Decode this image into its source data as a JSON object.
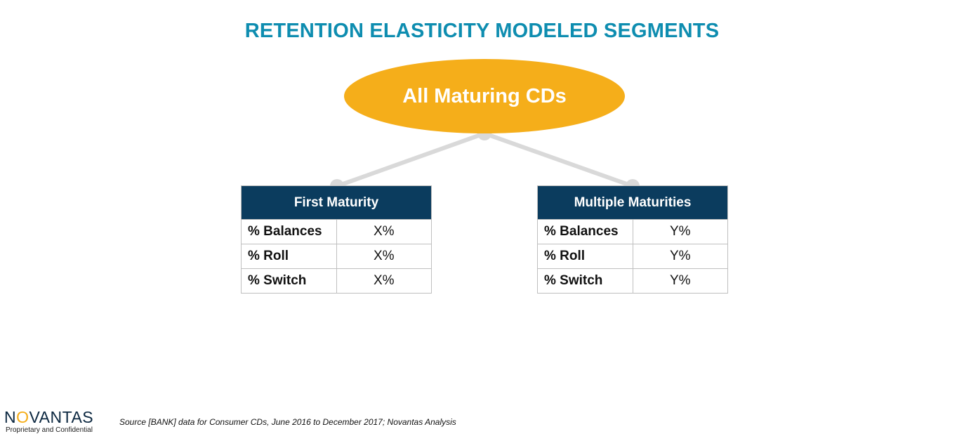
{
  "title": "RETENTION ELASTICITY MODELED SEGMENTS",
  "colors": {
    "title": "#0e8db0",
    "ellipse": "#f5ae1a",
    "header": "#0b3c5e",
    "connector": "#d9d9d9"
  },
  "root": {
    "label": "All Maturing CDs"
  },
  "segments": [
    {
      "header": "First Maturity",
      "rows": [
        {
          "metric": "% Balances",
          "value": "X%"
        },
        {
          "metric": "% Roll",
          "value": "X%"
        },
        {
          "metric": "% Switch",
          "value": "X%"
        }
      ]
    },
    {
      "header": "Multiple Maturities",
      "rows": [
        {
          "metric": "% Balances",
          "value": "Y%"
        },
        {
          "metric": "% Roll",
          "value": "Y%"
        },
        {
          "metric": "% Switch",
          "value": "Y%"
        }
      ]
    }
  ],
  "footer": {
    "logo_pre": "N",
    "logo_o": "O",
    "logo_post": "VANTAS",
    "confidential": "Proprietary and Confidential",
    "source": "Source [BANK] data for Consumer CDs, June 2016 to December 2017; Novantas Analysis"
  }
}
